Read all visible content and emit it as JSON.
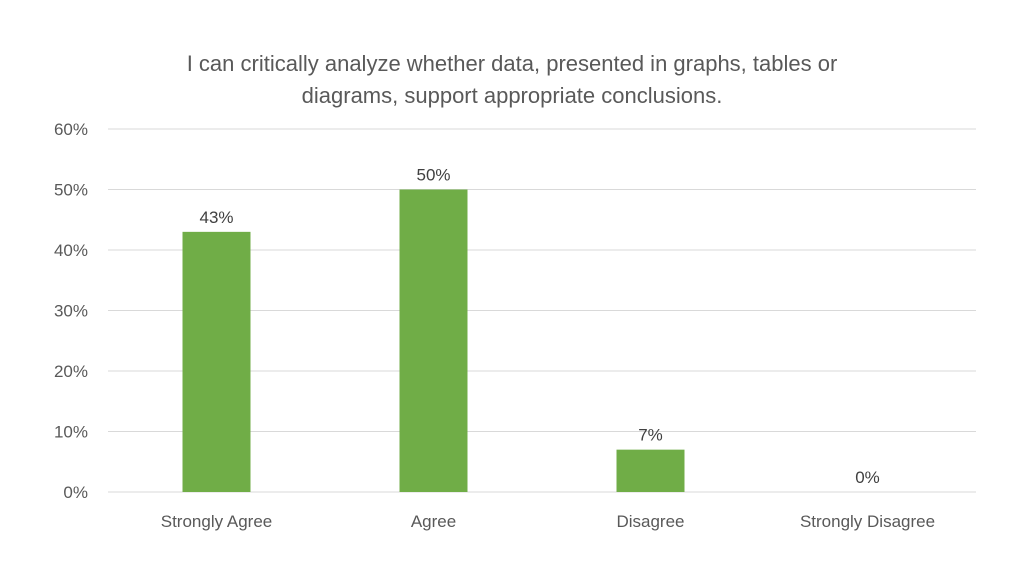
{
  "chart_data": {
    "type": "bar",
    "title_lines": [
      "I can critically analyze whether data, presented in graphs, tables or",
      "diagrams, support appropriate conclusions."
    ],
    "categories": [
      "Strongly Agree",
      "Agree",
      "Disagree",
      "Strongly Disagree"
    ],
    "values": [
      43,
      50,
      7,
      0
    ],
    "value_labels": [
      "43%",
      "50%",
      "7%",
      "0%"
    ],
    "ylim": [
      0,
      60
    ],
    "yticks": [
      0,
      10,
      20,
      30,
      40,
      50,
      60
    ],
    "ytick_labels": [
      "0%",
      "10%",
      "20%",
      "30%",
      "40%",
      "50%",
      "60%"
    ],
    "grid": true,
    "colors": {
      "bar": "#70ad47",
      "grid": "#d9d9d9",
      "text": "#595959"
    }
  }
}
